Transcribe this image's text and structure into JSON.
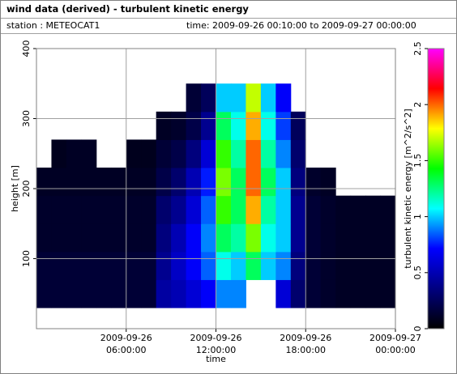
{
  "window": {
    "title": "wind data (derived) - turbulent kinetic energy",
    "station": "station : METEOCAT1",
    "time_range": "time: 2009-09-26 00:10:00 to 2009-09-27 00:00:00"
  },
  "chart_data": {
    "type": "heatmap",
    "xlabel": "time",
    "ylabel": "height [m]",
    "colorbar_label": "turbulent kinetic energy [m^2/s^2]",
    "xlim": [
      "2009-09-26 00:00:00",
      "2009-09-27 00:00:00"
    ],
    "xticks": [
      {
        "value": "2009-09-26 06:00:00",
        "label": [
          "2009-09-26",
          "06:00:00"
        ]
      },
      {
        "value": "2009-09-26 12:00:00",
        "label": [
          "2009-09-26",
          "12:00:00"
        ]
      },
      {
        "value": "2009-09-26 18:00:00",
        "label": [
          "2009-09-26",
          "18:00:00"
        ]
      },
      {
        "value": "2009-09-27 00:00:00",
        "label": [
          "2009-09-27",
          "00:00:00"
        ]
      }
    ],
    "ylim": [
      0,
      400
    ],
    "yticks": [
      100,
      200,
      300,
      400
    ],
    "zlim": [
      0,
      2.5
    ],
    "zticks": [
      0,
      0.5,
      1,
      1.5,
      2,
      2.5
    ],
    "colorscale": [
      "#000000",
      "#000080",
      "#0000ff",
      "#00ffff",
      "#00ff00",
      "#ffff00",
      "#ff0000",
      "#ff00ff"
    ],
    "grid": true,
    "x_edges": [
      "2009-09-26 00:00:00",
      "2009-09-26 01:00:00",
      "2009-09-26 02:00:00",
      "2009-09-26 03:00:00",
      "2009-09-26 04:00:00",
      "2009-09-26 05:00:00",
      "2009-09-26 06:00:00",
      "2009-09-26 07:00:00",
      "2009-09-26 08:00:00",
      "2009-09-26 09:00:00",
      "2009-09-26 10:00:00",
      "2009-09-26 11:00:00",
      "2009-09-26 12:00:00",
      "2009-09-26 13:00:00",
      "2009-09-26 14:00:00",
      "2009-09-26 15:00:00",
      "2009-09-26 16:00:00",
      "2009-09-26 17:00:00",
      "2009-09-26 18:00:00",
      "2009-09-26 19:00:00",
      "2009-09-26 20:00:00",
      "2009-09-26 21:00:00",
      "2009-09-26 22:00:00",
      "2009-09-26 23:00:00",
      "2009-09-27 00:00:00"
    ],
    "y_edges": [
      30,
      70,
      110,
      150,
      190,
      230,
      270,
      310,
      350
    ],
    "z": [
      [
        0.15,
        0.15,
        0.15,
        0.15,
        0.15,
        0.15,
        0.15,
        0.15,
        0.45,
        0.5,
        0.6,
        0.7,
        0.9,
        0.9,
        null,
        null,
        0.6,
        0.3,
        0.15,
        0.12,
        0.1,
        0.1,
        0.1,
        0.1
      ],
      [
        0.15,
        0.15,
        0.15,
        0.15,
        0.15,
        0.15,
        0.15,
        0.15,
        0.4,
        0.55,
        0.7,
        0.85,
        1.1,
        1.0,
        1.3,
        1.0,
        0.9,
        0.35,
        0.15,
        0.12,
        0.1,
        0.1,
        0.1,
        0.1
      ],
      [
        0.12,
        0.12,
        0.12,
        0.12,
        0.12,
        0.12,
        0.12,
        0.12,
        0.35,
        0.5,
        0.7,
        0.9,
        1.3,
        1.2,
        1.6,
        1.1,
        1.0,
        0.4,
        0.15,
        0.12,
        0.1,
        0.1,
        0.1,
        0.1
      ],
      [
        0.12,
        0.12,
        0.12,
        0.12,
        0.12,
        0.12,
        0.12,
        0.12,
        0.3,
        0.4,
        0.6,
        0.85,
        1.5,
        1.3,
        1.9,
        1.2,
        1.0,
        0.4,
        0.15,
        0.12,
        0.1,
        0.1,
        0.1,
        0.1
      ],
      [
        0.1,
        0.1,
        0.1,
        0.1,
        0.1,
        0.1,
        0.1,
        0.1,
        0.2,
        0.3,
        0.5,
        0.75,
        1.6,
        1.3,
        2.0,
        1.3,
        1.0,
        0.35,
        0.12,
        0.1,
        null,
        null,
        null,
        null
      ],
      [
        null,
        0.08,
        0.1,
        0.1,
        null,
        null,
        0.08,
        0.08,
        0.15,
        0.2,
        0.35,
        0.6,
        1.5,
        1.2,
        2.0,
        1.2,
        0.9,
        0.3,
        null,
        null,
        null,
        null,
        null,
        null
      ],
      [
        null,
        null,
        null,
        null,
        null,
        null,
        null,
        null,
        0.1,
        0.12,
        0.2,
        0.4,
        1.3,
        1.1,
        1.9,
        1.1,
        0.8,
        0.25,
        null,
        null,
        null,
        null,
        null,
        null
      ],
      [
        null,
        null,
        null,
        null,
        null,
        null,
        null,
        null,
        null,
        null,
        0.15,
        0.25,
        1.0,
        1.0,
        1.7,
        1.0,
        0.7,
        null,
        null,
        null,
        null,
        null,
        null,
        null
      ]
    ]
  }
}
